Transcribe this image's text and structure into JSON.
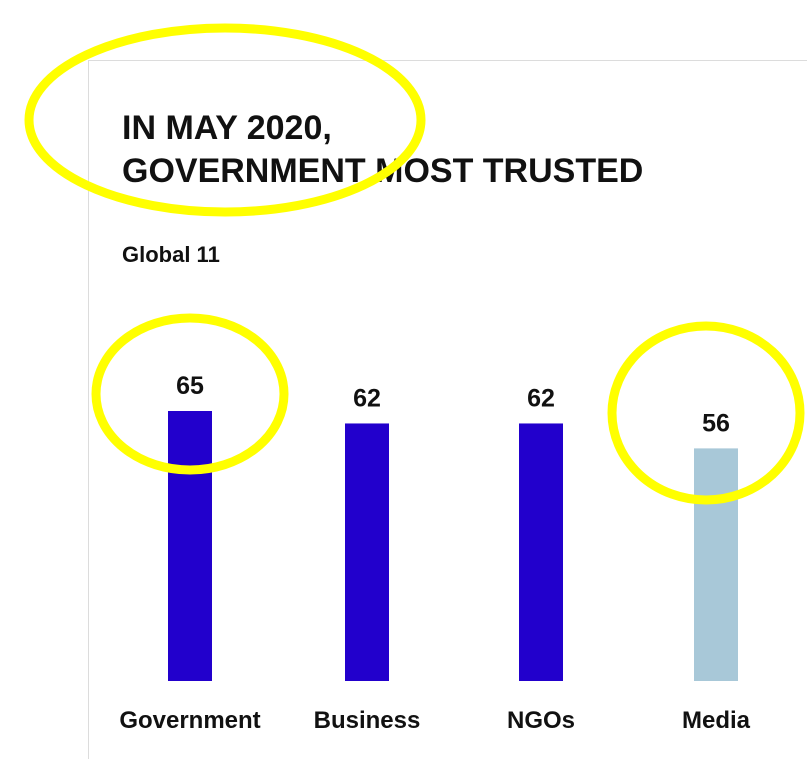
{
  "chart_data": {
    "type": "bar",
    "title": "IN MAY 2020,\nGOVERNMENT MOST TRUSTED",
    "subtitle": "Global 11",
    "categories": [
      "Government",
      "Business",
      "NGOs",
      "Media"
    ],
    "values": [
      65,
      62,
      62,
      56
    ],
    "value_labels": [
      "65",
      "62",
      "62",
      "56"
    ],
    "colors": [
      "#2200cc",
      "#2200cc",
      "#2200cc",
      "#a8c8d8"
    ],
    "xlabel": "",
    "ylabel": "",
    "ylim": [
      0,
      65
    ],
    "grid": false,
    "legend": "none"
  },
  "annotations": {
    "highlight_color": "#ffff00",
    "highlighted_items": [
      "title",
      "Government value",
      "Media value"
    ]
  }
}
